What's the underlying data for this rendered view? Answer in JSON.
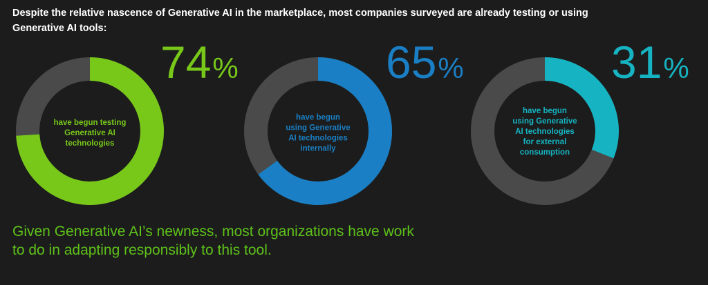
{
  "title": "Despite the relative nascence of Generative AI in the marketplace, most companies surveyed are already testing or using Generative AI tools:",
  "footer": "Given Generative AI’s newness, most organizations have work to do in adapting responsibly to this tool.",
  "colors": {
    "background": "#1c1c1c",
    "track": "#4a4a4a",
    "green": "#78c81a",
    "blue": "#1a7fc4",
    "teal": "#16b4c2",
    "footer_text": "#5ec21a"
  },
  "chart_data": {
    "type": "donut",
    "items": [
      {
        "percent_label": "74",
        "sign": "%",
        "value": 74,
        "color": "#78c81a",
        "label_lines": [
          "have begun testing",
          "Generative AI",
          "technologies"
        ]
      },
      {
        "percent_label": "65",
        "sign": "%",
        "value": 65,
        "color": "#1a7fc4",
        "label_lines": [
          "have begun",
          "using Generative",
          "AI technologies",
          "internally"
        ]
      },
      {
        "percent_label": "31",
        "sign": "%",
        "value": 31,
        "color": "#16b4c2",
        "label_lines": [
          "have begun",
          "using Generative",
          "AI technologies",
          "for external",
          "consumption"
        ]
      }
    ]
  }
}
